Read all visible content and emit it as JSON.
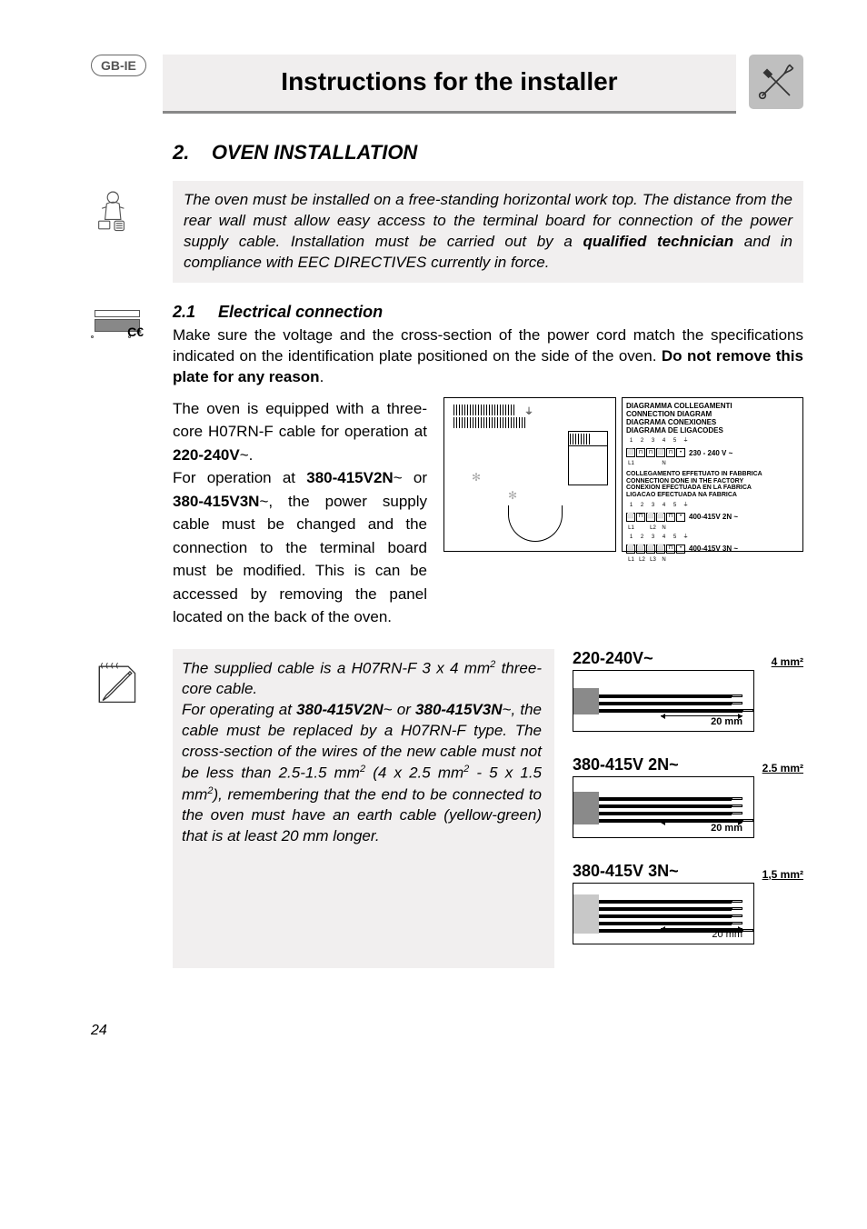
{
  "region_badge": "GB-IE",
  "banner_title": "Instructions for the installer",
  "section": {
    "number": "2.",
    "title": "OVEN INSTALLATION"
  },
  "intro": {
    "pre": "The oven must be installed on a free-standing horizontal work top. The distance from the rear wall must allow easy access to the terminal board for connection of the power supply cable. Installation must be carried out by a ",
    "bold": "qualified technician",
    "post": " and in compliance with EEC DIRECTIVES currently in force."
  },
  "subsection": {
    "number": "2.1",
    "title": "Electrical connection"
  },
  "spec_block": {
    "pre": "Make sure the voltage and the cross-section of the power cord match the specifications indicated on the identification plate positioned on the side of the oven. ",
    "bold": "Do not remove this plate for any reason",
    "post": "."
  },
  "equipment": {
    "line1_pre": "The oven is equipped with a three-core H07RN-F cable for operation at ",
    "line1_bold": "220-240V",
    "tilde1": "~",
    "dot1": ".",
    "line2_pre": "For operation at ",
    "line2_bold1": "380-415V2N",
    "or": " or ",
    "line2_bold2": "380-415V3N",
    "line2_post": ", the power supply cable must be changed and the connection to the terminal board must be modified. This is can be accessed by removing the panel located on the back of the oven."
  },
  "connection_diagram": {
    "head1": "DIAGRAMMA COLLEGAMENTI",
    "head2": "CONNECTION DIAGRAM",
    "head3": "DIAGRAMA CONEXIONES",
    "head4": "DIAGRAMA DE LIGACODES",
    "terminals": [
      "1",
      "2",
      "3",
      "4",
      "5",
      "⏚"
    ],
    "row1_legend": [
      "L1",
      "",
      "",
      "N",
      ""
    ],
    "row1_label": "230 - 240 V ~",
    "note1": "COLLEGAMENTO EFFETUATO IN FABBRICA",
    "note2": "CONNECTION DONE IN THE FACTORY",
    "note3": "CONEXION EFECTUADA EN LA FABRICA",
    "note4": "LIGACAO EFECTUADA NA FABRICA",
    "row2_legend": [
      "L1",
      "",
      "L2",
      "N",
      ""
    ],
    "row2_label": "400-415V 2N ~",
    "row3_legend": [
      "L1",
      "L2",
      "L3",
      "N",
      ""
    ],
    "row3_label": "400-415V 3N ~"
  },
  "cable_note": {
    "p1_pre": "The supplied cable is a H07RN-F 3 x 4 mm",
    "p1_sup": "2",
    "p1_post": " three-core cable.",
    "p2_pre": "For operating at ",
    "p2_b1": "380-415V2N",
    "p2_mid": " or ",
    "p2_b2": "380-415V3N",
    "p2_post1": ", the cable must be replaced by a H07RN-F type. The cross-section of the wires of the new cable must not be less than 2.5-1.5 mm",
    "p2_sup1": "2",
    "p2_post2": " (4 x 2.5 mm",
    "p2_sup2": "2",
    "p2_post3": " - 5 x 1.5 mm",
    "p2_sup3": "2",
    "p2_post4": "), remembering that the end to be connected to the oven must have an earth cable (yellow-green) that is at least 20 mm longer."
  },
  "cable_diagrams": [
    {
      "title": "220-240V~",
      "mm": "4 mm²",
      "wires": 3,
      "len": "20 mm",
      "jacket_color": "#8a8a8a",
      "len_weight": "bold"
    },
    {
      "title": "380-415V 2N~",
      "mm": "2.5 mm²",
      "wires": 4,
      "len": "20 mm",
      "jacket_color": "#8a8a8a",
      "len_weight": "bold"
    },
    {
      "title": "380-415V 3N~",
      "mm": "1,5 mm²",
      "wires": 5,
      "len": "20 mm",
      "jacket_color": "#c8c8c8",
      "len_weight": "normal"
    }
  ],
  "page_number": "24",
  "colors": {
    "banner_bg": "#f0eeee",
    "banner_border": "#888888",
    "callout_bg": "#f1efef",
    "text": "#000000",
    "tool_icon_bg": "#bfbfbf"
  }
}
